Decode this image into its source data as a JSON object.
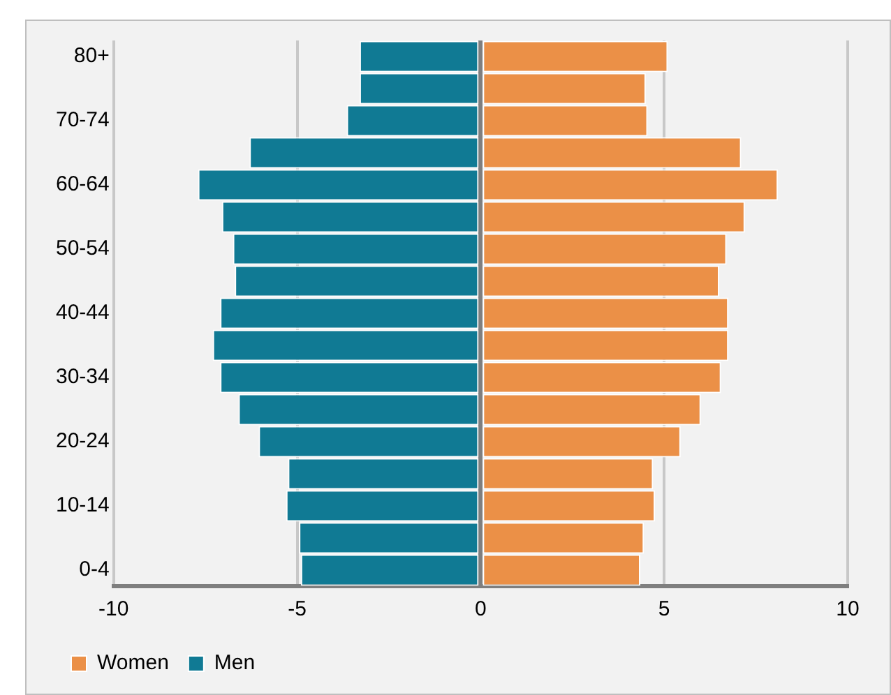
{
  "chart_data": {
    "type": "bar",
    "orientation": "horizontal",
    "stacked": true,
    "categories": [
      "80+",
      null,
      "70-74",
      null,
      "60-64",
      null,
      "50-54",
      null,
      "40-44",
      null,
      "30-34",
      null,
      "20-24",
      null,
      "10-14",
      null,
      "0-4"
    ],
    "series": [
      {
        "name": "Women",
        "color": "#eb9047",
        "values": [
          5.1,
          4.5,
          4.55,
          7.1,
          8.1,
          7.2,
          6.7,
          6.5,
          6.75,
          6.75,
          6.55,
          6.0,
          5.45,
          4.7,
          4.75,
          4.45,
          4.35
        ]
      },
      {
        "name": "Men",
        "color": "#107a94",
        "values": [
          -3.3,
          -3.3,
          -3.65,
          -6.3,
          -7.7,
          -7.05,
          -6.75,
          -6.7,
          -7.1,
          -7.3,
          -7.1,
          -6.6,
          -6.05,
          -5.25,
          -5.3,
          -4.95,
          -4.9
        ]
      }
    ],
    "xlim": [
      -10,
      10
    ],
    "xticks": [
      -10,
      -5,
      0,
      5,
      10
    ],
    "grid": "x",
    "legend": "bottom left"
  }
}
